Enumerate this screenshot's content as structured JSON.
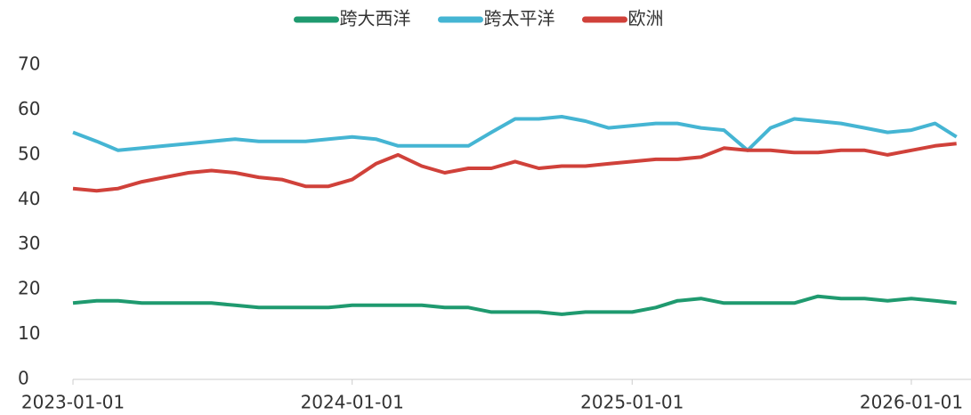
{
  "chart_data": {
    "type": "line",
    "x": [
      "2023-01-01",
      "2023-02-01",
      "2023-03-01",
      "2023-04-01",
      "2023-05-01",
      "2023-06-01",
      "2023-07-01",
      "2023-08-01",
      "2023-09-01",
      "2023-10-01",
      "2023-11-01",
      "2023-12-01",
      "2024-01-01",
      "2024-02-01",
      "2024-03-01",
      "2024-04-01",
      "2024-05-01",
      "2024-06-01",
      "2024-07-01",
      "2024-08-01",
      "2024-09-01",
      "2024-10-01",
      "2024-11-01",
      "2024-12-01",
      "2025-01-01",
      "2025-02-01",
      "2025-03-01",
      "2025-04-01",
      "2025-05-01",
      "2025-06-01",
      "2025-07-01",
      "2025-08-01",
      "2025-09-01",
      "2025-10-01",
      "2025-11-01",
      "2025-12-01",
      "2026-01-01",
      "2026-02-01",
      "2026-03-01"
    ],
    "series": [
      {
        "name": "跨大西洋",
        "color": "#1f9a6f",
        "values": [
          17,
          17.5,
          17.5,
          17,
          17,
          17,
          17,
          16.5,
          16,
          16,
          16,
          16,
          16.5,
          16.5,
          16.5,
          16.5,
          16,
          16,
          15,
          15,
          15,
          14.5,
          15,
          15,
          15,
          16,
          17.5,
          18,
          17,
          17,
          17,
          17,
          18.5,
          18,
          18,
          17.5,
          18,
          17.5,
          17
        ]
      },
      {
        "name": "跨太平洋",
        "color": "#45b5d3",
        "values": [
          55,
          53,
          51,
          51.5,
          52,
          52.5,
          53,
          53.5,
          53,
          53,
          53,
          53.5,
          54,
          53.5,
          52,
          52,
          52,
          52,
          55,
          58,
          58,
          58.5,
          57.5,
          56,
          56.5,
          57,
          57,
          56,
          55.5,
          51,
          56,
          58,
          57.5,
          57,
          56,
          55,
          55.5,
          57,
          54
        ]
      },
      {
        "name": "欧洲",
        "color": "#d0413a",
        "values": [
          42.5,
          42,
          42.5,
          44,
          45,
          46,
          46.5,
          46,
          45,
          44.5,
          43,
          43,
          44.5,
          48,
          50,
          47.5,
          46,
          47,
          47,
          48.5,
          47,
          47.5,
          47.5,
          48,
          48.5,
          49,
          49,
          49.5,
          51.5,
          51,
          51,
          50.5,
          50.5,
          51,
          51,
          50,
          51,
          52,
          52.5
        ]
      }
    ],
    "xlim": [
      "2023-01-01",
      "2026-03-20"
    ],
    "xticks": [
      "2023-01-01",
      "2024-01-01",
      "2025-01-01",
      "2026-01-01"
    ],
    "ylim": [
      0,
      70
    ],
    "yticks": [
      0,
      10,
      20,
      30,
      40,
      50,
      60,
      70
    ],
    "legend": "top"
  }
}
